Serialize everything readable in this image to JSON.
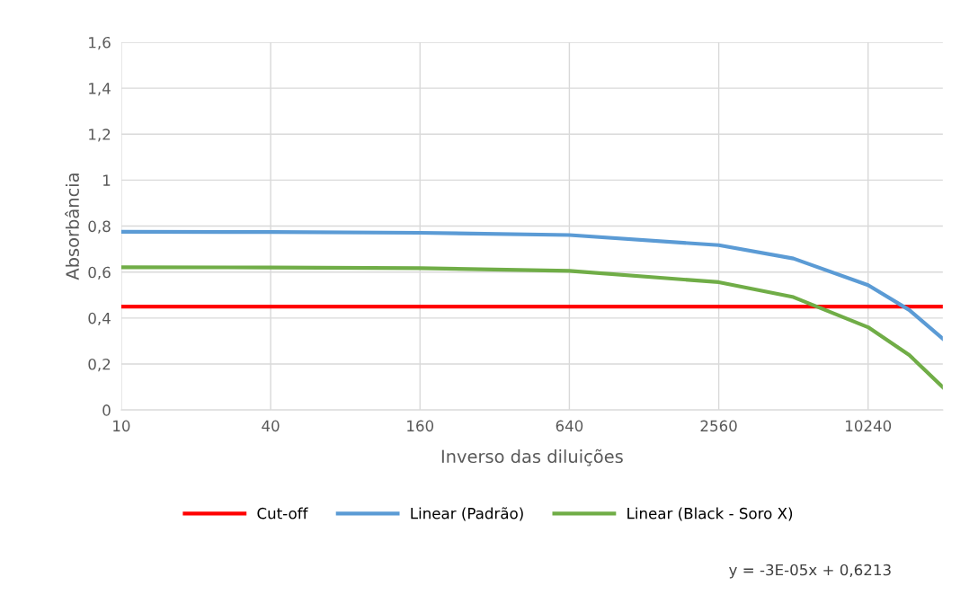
{
  "chart_data": {
    "type": "line",
    "xlabel": "Inverso das diluições",
    "ylabel": "Absorbância",
    "log": "x",
    "xlim": [
      10,
      20480
    ],
    "xticks": [
      10,
      40,
      160,
      640,
      2560,
      10240
    ],
    "ylim": [
      0,
      1.6
    ],
    "yticks": [
      0,
      {
        "value": 0.2,
        "label": "0,2"
      },
      {
        "value": 0.4,
        "label": "0,4"
      },
      {
        "value": 0.6,
        "label": "0,6"
      },
      {
        "value": 0.8,
        "label": "0,8"
      },
      1,
      {
        "value": 1.2,
        "label": "1,2"
      },
      {
        "value": 1.4,
        "label": "1,4"
      },
      {
        "value": 1.6,
        "label": "1,6"
      }
    ],
    "grid": true,
    "legend": "bottom",
    "marker": "none",
    "line_style": "solid",
    "series": [
      {
        "name": "Cut-off",
        "color": "#ff0000",
        "x": [
          10,
          20480
        ],
        "values": [
          0.45,
          0.45
        ]
      },
      {
        "name": "Linear (Padrão)",
        "color": "#5b9bd5",
        "x": [
          10,
          40,
          160,
          640,
          2560,
          5120,
          10240,
          15000,
          20480
        ],
        "values": [
          0.775,
          0.774,
          0.771,
          0.761,
          0.717,
          0.659,
          0.543,
          0.435,
          0.31
        ]
      },
      {
        "name": "Linear (Black - Soro X)",
        "color": "#70ad47",
        "x": [
          10,
          40,
          160,
          640,
          2560,
          5120,
          10240,
          15000,
          20480
        ],
        "values": [
          0.621,
          0.62,
          0.617,
          0.605,
          0.556,
          0.491,
          0.36,
          0.239,
          0.099
        ]
      }
    ],
    "annotations": [
      "y = -3E-05x + 0,6213"
    ]
  }
}
